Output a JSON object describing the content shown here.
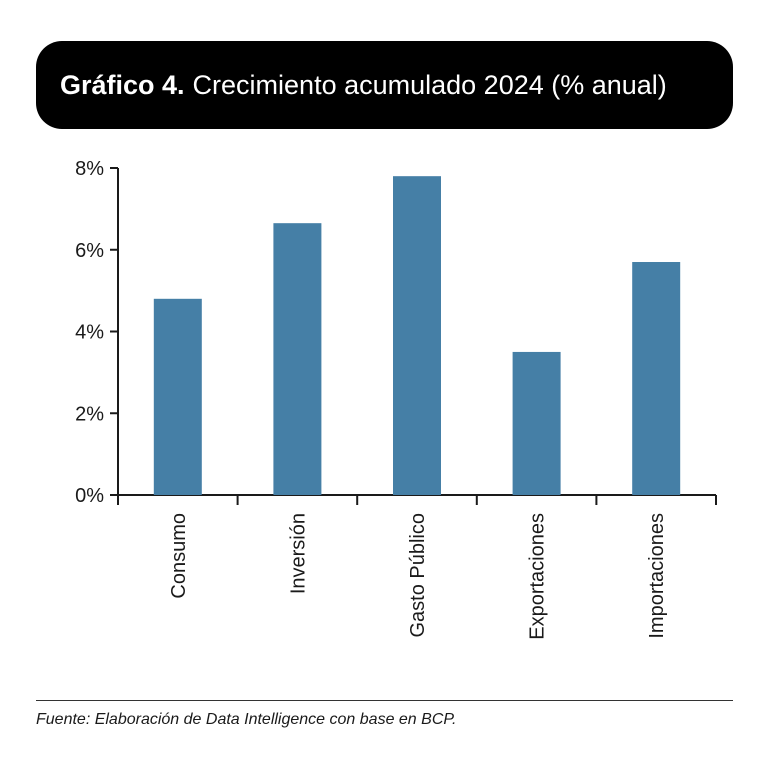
{
  "title": {
    "label": "Gráfico 4.",
    "text": "Crecimiento acumulado 2024 (% anual)"
  },
  "source": "Fuente: Elaboración de Data Intelligence con base en BCP.",
  "colors": {
    "bar": "#457fa6",
    "axis": "#1a1a1a",
    "title_bg": "#000000"
  },
  "chart_data": {
    "type": "bar",
    "title": "Gráfico 4. Crecimiento acumulado 2024 (% anual)",
    "xlabel": "",
    "ylabel": "",
    "categories": [
      "Consumo",
      "Inversión",
      "Gasto Público",
      "Exportaciones",
      "Importaciones"
    ],
    "values": [
      4.8,
      6.65,
      7.8,
      3.5,
      5.7
    ],
    "ylim": [
      0,
      8
    ],
    "yticks": [
      0,
      2,
      4,
      6,
      8
    ],
    "ytick_labels": [
      "0%",
      "2%",
      "4%",
      "6%",
      "8%"
    ],
    "grid": false,
    "legend": "none"
  }
}
